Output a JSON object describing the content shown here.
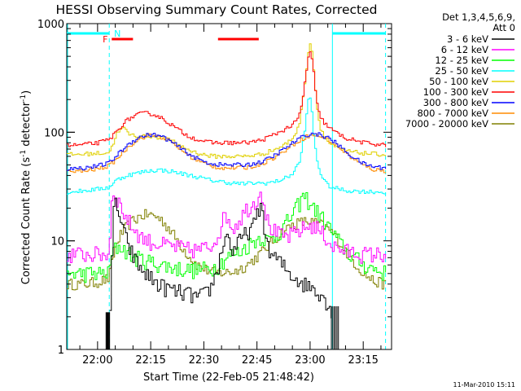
{
  "chart_data": {
    "type": "line",
    "title": "HESSI Observing Summary Count Rates, Corrected",
    "xlabel": "Start Time (22-Feb-05 21:48:42)",
    "ylabel": "Corrected Count Rate (s",
    "ylabel_sup1": "-1",
    "ylabel_mid": " detector",
    "ylabel_sup2": "-1",
    "ylabel_end": ")",
    "yscale": "log",
    "ylim": [
      1,
      1000
    ],
    "xlim_minutes": [
      -8.7,
      83.0
    ],
    "x_ticks": [
      {
        "label": "22:00",
        "minutes": 0
      },
      {
        "label": "22:15",
        "minutes": 15
      },
      {
        "label": "22:30",
        "minutes": 30
      },
      {
        "label": "22:45",
        "minutes": 45
      },
      {
        "label": "23:00",
        "minutes": 60
      },
      {
        "label": "23:15",
        "minutes": 75
      }
    ],
    "y_ticks": [
      {
        "label": "1",
        "value": 1
      },
      {
        "label": "10",
        "value": 10
      },
      {
        "label": "100",
        "value": 100
      },
      {
        "label": "1000",
        "value": 1000
      }
    ],
    "legend": {
      "placement": "right",
      "header1": "Det 1,3,4,5,6,9,",
      "header2": "Att 0",
      "entries": [
        {
          "label": "3 - 6 keV",
          "color": "#000000"
        },
        {
          "label": "6 - 12 keV",
          "color": "#ff00ff"
        },
        {
          "label": "12 - 25 keV",
          "color": "#00ff00"
        },
        {
          "label": "25 - 50 keV",
          "color": "#00ffff"
        },
        {
          "label": "50 - 100 keV",
          "color": "#e0d000"
        },
        {
          "label": "100 - 300 keV",
          "color": "#ff0000"
        },
        {
          "label": "300 - 800 keV",
          "color": "#0000ff"
        },
        {
          "label": "800 - 7000 keV",
          "color": "#ff8c00"
        },
        {
          "label": "7000 - 20000 keV",
          "color": "#808000"
        }
      ]
    },
    "flags": {
      "night_label": "N",
      "flare_label": "F",
      "night_color": "#00ffff",
      "flare_color": "#ff0000",
      "night_intervals_minutes": [
        [
          -8.7,
          3.3
        ],
        [
          66.3,
          81.3
        ]
      ],
      "flare_intervals_minutes": [
        [
          4.0,
          10.0
        ],
        [
          34.0,
          45.5
        ]
      ],
      "eclipse_boundaries_minutes": [
        [
          3.3,
          66.3
        ]
      ]
    },
    "series": [
      {
        "label": "3 - 6 keV",
        "color": "#000000",
        "x": [
          3.4,
          4.5,
          5.5,
          6.5,
          8,
          10,
          12,
          14,
          16,
          18,
          20,
          22,
          24,
          26,
          28,
          30,
          32,
          34,
          36,
          38,
          40,
          42,
          44,
          46,
          48,
          50,
          52,
          54,
          56,
          58,
          60,
          62,
          64,
          66
        ],
        "y": [
          2,
          25,
          20,
          14,
          10,
          7,
          5.5,
          4.8,
          4.2,
          3.8,
          3.6,
          3.4,
          3.3,
          3.2,
          3.0,
          3.2,
          3.8,
          6,
          12,
          8,
          10,
          12,
          14,
          22,
          8,
          7,
          6,
          5,
          4.5,
          4.0,
          3.8,
          3.5,
          3.0,
          2.0
        ]
      },
      {
        "label": "6 - 12 keV",
        "color": "#ff00ff",
        "x": [
          -8.7,
          -4,
          0,
          3.0,
          4.0,
          6,
          8,
          10,
          12,
          14,
          16,
          18,
          20,
          22,
          24,
          26,
          28,
          30,
          32,
          34,
          36,
          38,
          40,
          42,
          44,
          46,
          48,
          50,
          52,
          54,
          56,
          58,
          60,
          62,
          64,
          66,
          70,
          75,
          81.3
        ],
        "y": [
          7.5,
          7.5,
          7.5,
          7.5,
          30,
          22,
          16,
          13,
          11,
          10,
          9.5,
          9.2,
          9,
          8.7,
          8.5,
          8.2,
          8.3,
          8.5,
          9,
          12,
          18,
          13,
          16,
          20,
          22,
          30,
          14,
          12,
          11,
          11,
          12,
          13,
          14,
          13,
          11,
          9,
          8,
          7.5,
          7.5
        ]
      },
      {
        "label": "12 - 25 keV",
        "color": "#00ff00",
        "x": [
          -8.7,
          -4,
          0,
          3.0,
          4.0,
          6,
          8,
          10,
          12,
          14,
          16,
          18,
          20,
          22,
          24,
          26,
          28,
          30,
          32,
          34,
          36,
          38,
          40,
          42,
          44,
          46,
          48,
          50,
          52,
          54,
          56,
          58,
          60,
          62,
          64,
          66,
          70,
          75,
          81.3
        ],
        "y": [
          5,
          5,
          5,
          5,
          8,
          9,
          8,
          7,
          6.8,
          6.5,
          6.2,
          6,
          5.8,
          5.6,
          5.5,
          5.4,
          5.4,
          5.5,
          5.6,
          6,
          7,
          7.5,
          8,
          9,
          10,
          11,
          10,
          11,
          13,
          16,
          20,
          26,
          22,
          18,
          15,
          12,
          8,
          6,
          5
        ]
      },
      {
        "label": "25 - 50 keV",
        "color": "#00ffff",
        "x": [
          -8.7,
          -4,
          0,
          3.0,
          5,
          8,
          11,
          14,
          17,
          20,
          23,
          26,
          29,
          32,
          35,
          38,
          41,
          44,
          47,
          50,
          53,
          55,
          57,
          58,
          59,
          59.6,
          60.3,
          61,
          62,
          63,
          64.5,
          66,
          70,
          75,
          81.3
        ],
        "y": [
          28,
          29,
          30,
          31,
          36,
          40,
          42,
          44,
          45,
          44,
          42,
          40,
          38,
          36,
          35,
          34,
          33.5,
          34,
          34,
          35,
          38,
          42,
          55,
          90,
          160,
          240,
          150,
          80,
          50,
          40,
          33,
          31,
          29,
          28.5,
          28
        ]
      },
      {
        "label": "50 - 100 keV",
        "color": "#e0d000",
        "x": [
          -8.7,
          -4,
          0,
          3.0,
          4,
          5,
          7,
          9,
          11,
          13,
          15,
          17,
          19,
          21,
          23,
          25,
          27,
          29,
          31,
          33,
          35,
          37,
          39,
          41,
          43,
          45,
          47,
          49,
          51,
          53,
          55,
          56.5,
          57.5,
          58.5,
          59.3,
          60.0,
          60.7,
          61.5,
          62.5,
          64,
          66,
          68,
          70,
          75,
          81.3
        ],
        "y": [
          62,
          63,
          64,
          65,
          75,
          95,
          110,
          95,
          92,
          92,
          92,
          90,
          87,
          82,
          76,
          70,
          66,
          63,
          61,
          60,
          60,
          60,
          60,
          60,
          61,
          62,
          64,
          68,
          72,
          78,
          90,
          110,
          170,
          330,
          550,
          700,
          420,
          200,
          115,
          88,
          75,
          70,
          67,
          64,
          62
        ]
      },
      {
        "label": "100 - 300 keV",
        "color": "#ff0000",
        "x": [
          -8.7,
          -4,
          0,
          3.0,
          5,
          7,
          9,
          11,
          13,
          15,
          17,
          19,
          21,
          23,
          25,
          27,
          29,
          31,
          33,
          35,
          37,
          39,
          41,
          43,
          45,
          47,
          49,
          51,
          53,
          55,
          56.5,
          57.5,
          58.5,
          59.3,
          60.0,
          60.7,
          61.5,
          62.5,
          64,
          66,
          68,
          70,
          75,
          81.3
        ],
        "y": [
          75,
          77,
          80,
          85,
          100,
          120,
          135,
          145,
          150,
          148,
          140,
          128,
          115,
          103,
          94,
          88,
          84,
          81,
          80,
          80,
          80,
          80,
          80,
          81,
          83,
          87,
          93,
          100,
          108,
          118,
          135,
          180,
          320,
          500,
          560,
          380,
          200,
          140,
          120,
          105,
          95,
          88,
          80,
          76
        ]
      },
      {
        "label": "300 - 800 keV",
        "color": "#0000ff",
        "x": [
          -8.7,
          -4,
          0,
          3.0,
          5,
          7,
          9,
          11,
          13,
          15,
          17,
          19,
          21,
          23,
          25,
          27,
          29,
          31,
          33,
          35,
          37,
          39,
          41,
          43,
          45,
          47,
          49,
          51,
          53,
          55,
          57,
          59,
          61,
          63,
          65,
          67,
          69,
          71,
          73,
          75,
          78,
          81.3
        ],
        "y": [
          46,
          47,
          49,
          52,
          60,
          70,
          80,
          88,
          93,
          95,
          93,
          88,
          80,
          72,
          65,
          59,
          55,
          52,
          51,
          50,
          50,
          50,
          50,
          51,
          52,
          55,
          59,
          65,
          72,
          80,
          88,
          95,
          97,
          94,
          88,
          80,
          70,
          62,
          56,
          51,
          48,
          47
        ]
      },
      {
        "label": "800 - 7000 keV",
        "color": "#ff8c00",
        "x": [
          -8.7,
          -4,
          0,
          3.0,
          5,
          7,
          9,
          11,
          13,
          15,
          17,
          19,
          21,
          23,
          25,
          27,
          29,
          31,
          33,
          35,
          37,
          39,
          41,
          43,
          45,
          47,
          49,
          51,
          53,
          55,
          57,
          59,
          61,
          63,
          65,
          67,
          69,
          71,
          73,
          75,
          78,
          81.3
        ],
        "y": [
          43,
          44,
          46,
          49,
          56,
          66,
          76,
          85,
          91,
          94,
          92,
          87,
          79,
          71,
          63,
          57,
          53,
          50,
          48,
          47,
          47,
          47,
          47,
          48,
          50,
          53,
          57,
          62,
          69,
          77,
          85,
          92,
          94,
          91,
          85,
          77,
          68,
          60,
          54,
          49,
          45,
          44
        ]
      },
      {
        "label": "7000 - 20000 keV",
        "color": "#808000",
        "x": [
          -8.7,
          -4,
          0,
          3.0,
          4.5,
          6,
          8,
          10,
          12,
          14,
          16,
          18,
          20,
          22,
          24,
          26,
          28,
          30,
          32,
          34,
          36,
          38,
          40,
          42,
          44,
          46,
          48,
          50,
          52,
          54,
          56,
          58,
          60,
          62,
          64,
          66,
          68,
          70,
          72,
          75,
          78,
          81.3
        ],
        "y": [
          4,
          4,
          4.2,
          4.5,
          8,
          11,
          13.5,
          15.5,
          17,
          17.5,
          17,
          15.5,
          13,
          10.5,
          8.5,
          7,
          6,
          5.5,
          5.2,
          5.1,
          5.1,
          5.2,
          5.5,
          6,
          6.8,
          7.8,
          9,
          10.5,
          12,
          13.5,
          14.5,
          15,
          15,
          14.5,
          13.5,
          12,
          10,
          8,
          6.5,
          5,
          4.2,
          4
        ]
      }
    ]
  },
  "footer": {
    "timestamp": "11-Mar-2010 15:11"
  }
}
